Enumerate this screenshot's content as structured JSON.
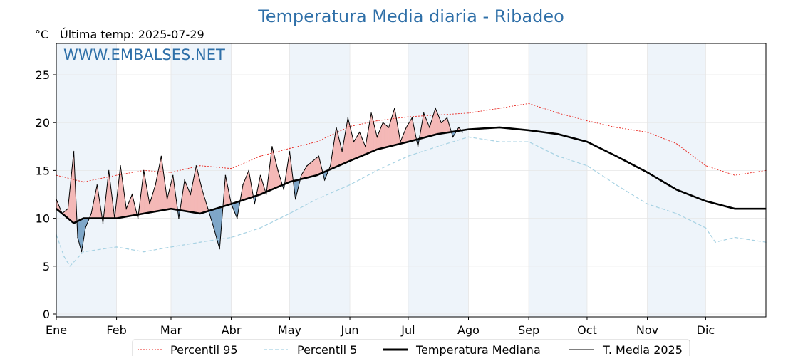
{
  "chart_data": {
    "type": "line",
    "title": "Temperatura Media diaria - Ribadeo",
    "unit": "°C",
    "last_update": "Última temp: 2025-07-29",
    "watermark": "WWW.EMBALSES.NET",
    "ylim": [
      0,
      28
    ],
    "yticks": [
      0,
      5,
      10,
      15,
      20,
      25
    ],
    "xlim": [
      1,
      366
    ],
    "months": [
      "Ene",
      "Feb",
      "Mar",
      "Abr",
      "May",
      "Jun",
      "Jul",
      "Ago",
      "Sep",
      "Oct",
      "Nov",
      "Dic"
    ],
    "month_starts": [
      1,
      32,
      60,
      91,
      121,
      152,
      182,
      213,
      244,
      274,
      305,
      335
    ],
    "grid": true,
    "legend_position": "bottom",
    "colors": {
      "p95": "#e8261f",
      "p5": "#a7d2e3",
      "median": "#000000",
      "media_2025": "#000000",
      "above": "#f4b8b6",
      "below": "#7ea6c8",
      "month_band": "#eef4fa",
      "title": "#2e6fa8"
    },
    "series": [
      {
        "name": "Percentil 95",
        "style": "dotted-red",
        "x": [
          1,
          15,
          32,
          46,
          60,
          75,
          91,
          106,
          121,
          135,
          152,
          166,
          182,
          197,
          213,
          229,
          244,
          259,
          274,
          289,
          305,
          320,
          335,
          350,
          366
        ],
        "values": [
          14.5,
          13.8,
          14.5,
          15.0,
          14.8,
          15.5,
          15.2,
          16.5,
          17.3,
          18.0,
          19.6,
          20.2,
          20.6,
          20.8,
          21.0,
          21.5,
          22.0,
          21.0,
          20.2,
          19.5,
          19.0,
          17.8,
          15.5,
          14.5,
          15.0
        ]
      },
      {
        "name": "Percentil 5",
        "style": "dashed-lightblue",
        "x": [
          1,
          5,
          8,
          15,
          32,
          46,
          60,
          75,
          91,
          106,
          121,
          135,
          152,
          166,
          182,
          197,
          213,
          229,
          244,
          259,
          274,
          289,
          305,
          320,
          335,
          340,
          350,
          366
        ],
        "values": [
          8.3,
          6.0,
          5.0,
          6.5,
          7.0,
          6.5,
          7.0,
          7.5,
          8.0,
          9.0,
          10.5,
          12.0,
          13.5,
          15.0,
          16.5,
          17.5,
          18.5,
          18.0,
          18.0,
          16.5,
          15.5,
          13.5,
          11.5,
          10.5,
          9.0,
          7.5,
          8.0,
          7.5
        ]
      },
      {
        "name": "Temperatura Mediana",
        "style": "thick-black",
        "x": [
          1,
          10,
          15,
          32,
          46,
          60,
          75,
          91,
          106,
          121,
          135,
          152,
          166,
          182,
          197,
          213,
          229,
          244,
          259,
          274,
          289,
          305,
          320,
          335,
          350,
          366
        ],
        "values": [
          11.0,
          9.5,
          10.0,
          10.0,
          10.5,
          11.0,
          10.5,
          11.5,
          12.5,
          13.8,
          14.5,
          16.0,
          17.2,
          18.0,
          18.8,
          19.3,
          19.5,
          19.2,
          18.8,
          18.0,
          16.5,
          14.8,
          13.0,
          11.8,
          11.0,
          11.0
        ]
      },
      {
        "name": "T. Media 2025",
        "style": "thin-black",
        "x": [
          1,
          4,
          7,
          10,
          12,
          14,
          16,
          19,
          22,
          25,
          28,
          31,
          34,
          37,
          40,
          43,
          46,
          49,
          52,
          55,
          58,
          61,
          64,
          67,
          70,
          73,
          76,
          79,
          82,
          85,
          88,
          91,
          94,
          97,
          100,
          103,
          106,
          109,
          112,
          115,
          118,
          121,
          124,
          127,
          130,
          133,
          136,
          139,
          142,
          145,
          148,
          151,
          154,
          157,
          160,
          163,
          166,
          169,
          172,
          175,
          178,
          181,
          184,
          187,
          190,
          193,
          196,
          199,
          202,
          205,
          208,
          210
        ],
        "values": [
          12.0,
          10.5,
          11.0,
          17.0,
          8.0,
          6.5,
          9.0,
          10.5,
          13.5,
          9.5,
          15.0,
          10.0,
          15.5,
          11.0,
          12.5,
          10.0,
          15.0,
          11.5,
          13.5,
          16.5,
          12.0,
          14.5,
          10.0,
          14.0,
          12.5,
          15.5,
          13.0,
          11.0,
          9.0,
          6.8,
          14.5,
          11.5,
          10.0,
          13.5,
          15.0,
          11.5,
          14.5,
          12.5,
          17.5,
          15.0,
          13.0,
          17.0,
          12.0,
          14.5,
          15.5,
          16.0,
          16.5,
          14.0,
          15.5,
          19.5,
          17.0,
          20.5,
          18.0,
          19.0,
          17.5,
          21.0,
          18.5,
          20.0,
          19.5,
          21.5,
          18.0,
          19.5,
          20.5,
          17.5,
          21.0,
          19.5,
          21.5,
          20.0,
          20.5,
          18.5,
          19.5,
          19.0
        ]
      }
    ]
  }
}
